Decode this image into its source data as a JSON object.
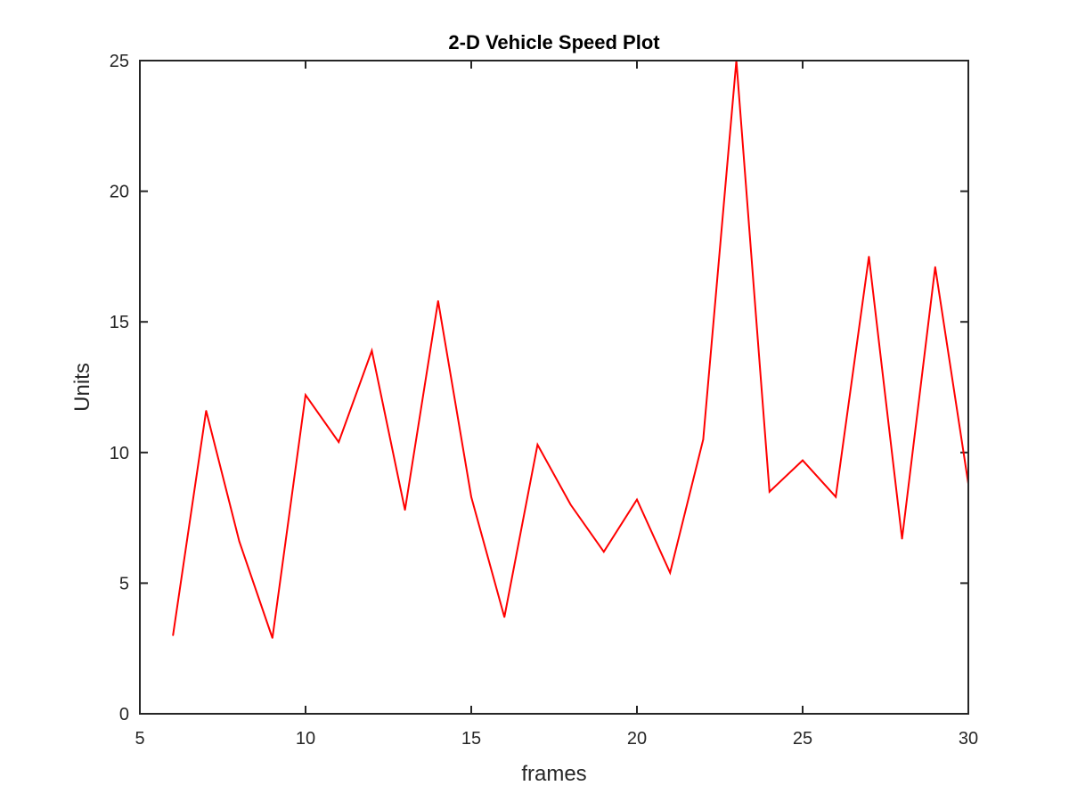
{
  "chart_data": {
    "type": "line",
    "title": "2-D Vehicle Speed Plot",
    "xlabel": "frames",
    "ylabel": "Units",
    "xlim": [
      5,
      30
    ],
    "ylim": [
      0,
      25
    ],
    "xticks": [
      5,
      10,
      15,
      20,
      25,
      30
    ],
    "yticks": [
      0,
      5,
      10,
      15,
      20,
      25
    ],
    "grid": false,
    "legend": "none",
    "series": [
      {
        "color": "#ff0000",
        "x": [
          6,
          7,
          8,
          9,
          10,
          11,
          12,
          13,
          14,
          15,
          16,
          17,
          18,
          19,
          20,
          21,
          22,
          23,
          24,
          25,
          26,
          27,
          28,
          29,
          30
        ],
        "y": [
          3.0,
          11.6,
          6.6,
          2.9,
          12.2,
          10.4,
          13.9,
          7.8,
          15.8,
          8.3,
          3.7,
          10.3,
          8.0,
          6.2,
          8.2,
          5.4,
          10.5,
          25.0,
          8.5,
          9.7,
          8.3,
          17.5,
          6.7,
          17.1,
          8.8
        ]
      }
    ]
  }
}
